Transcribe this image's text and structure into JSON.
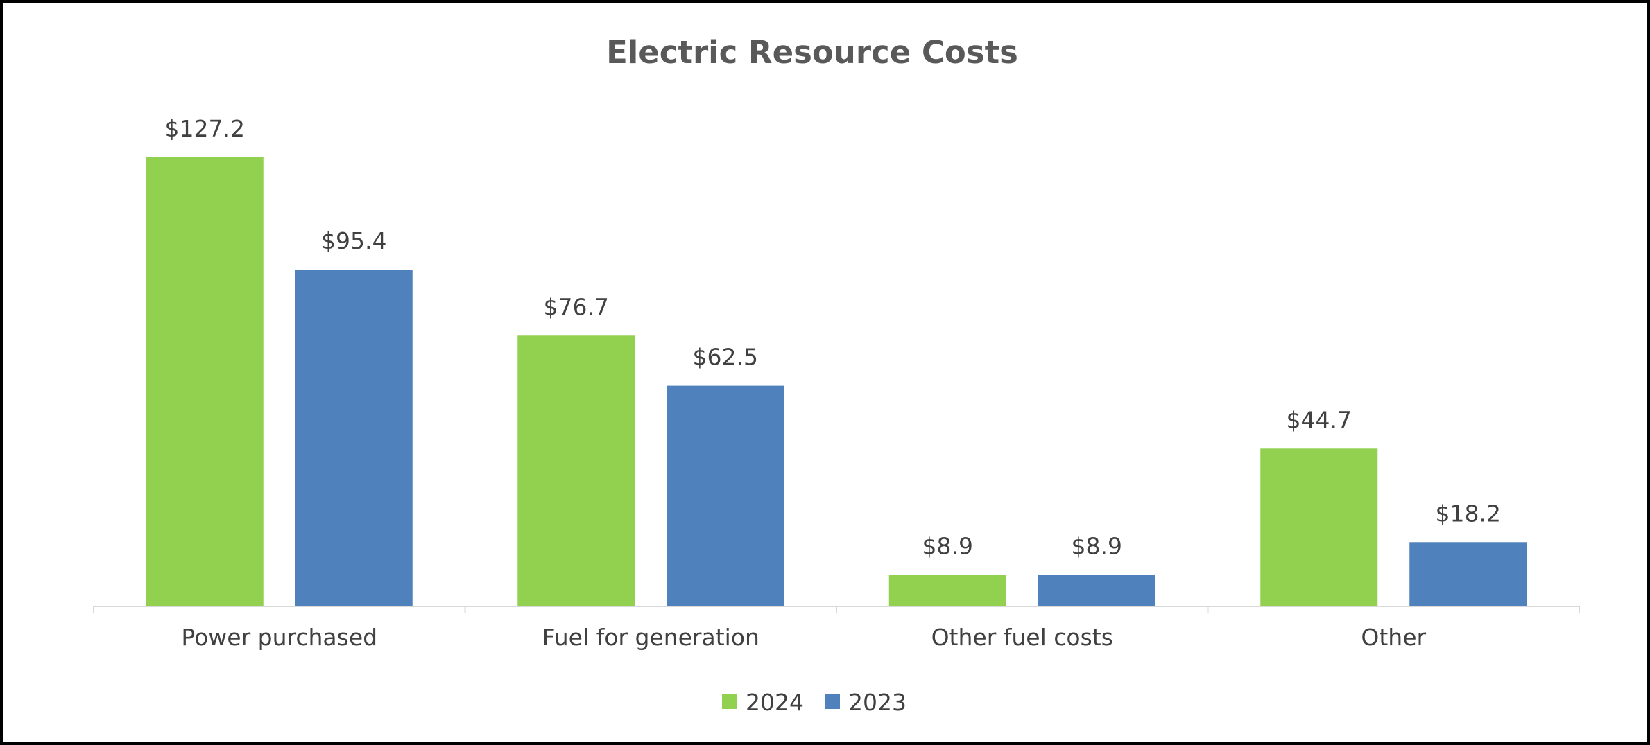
{
  "chart_data": {
    "type": "bar",
    "title": "Electric Resource Costs",
    "categories": [
      "Power purchased",
      "Fuel for generation",
      "Other fuel costs",
      "Other"
    ],
    "series": [
      {
        "name": "2024",
        "color": "#92d050",
        "values": [
          127.2,
          76.7,
          8.9,
          44.7
        ],
        "labels": [
          "$127.2",
          "$76.7",
          "$8.9",
          "$44.7"
        ]
      },
      {
        "name": "2023",
        "color": "#4f81bd",
        "values": [
          95.4,
          62.5,
          8.9,
          18.2
        ],
        "labels": [
          "$95.4",
          "$62.5",
          "$8.9",
          "$18.2"
        ]
      }
    ],
    "xlabel": "",
    "ylabel": "",
    "ylim": [
      0,
      127.2
    ],
    "grid": false,
    "legend": "bottom-center",
    "axis_color": "#d9d9d9"
  }
}
